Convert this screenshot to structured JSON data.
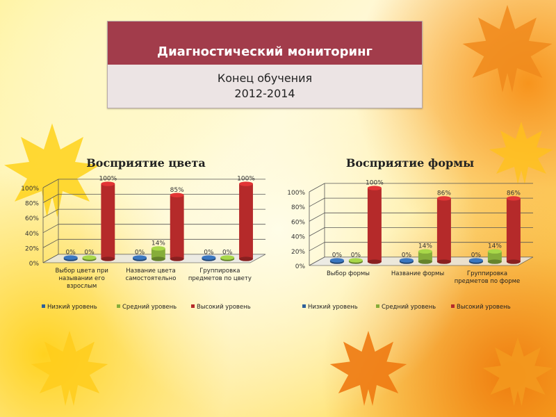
{
  "header": {
    "title": "Диагностический мониторинг",
    "subtitle_line1": "Конец обучения",
    "subtitle_line2": "2012-2014"
  },
  "colors": {
    "header_bg": "#a23c4b",
    "series": [
      "#2e5f9a",
      "#86ad3a",
      "#b52a2a"
    ]
  },
  "chart_data": [
    {
      "type": "bar",
      "title": "Восприятие цвета",
      "categories": [
        [
          "Выбор цвета при",
          "назывании его",
          "взрослым"
        ],
        [
          "Название цвета",
          "самостоятельно"
        ],
        [
          "Группировка",
          "предметов по цвету"
        ]
      ],
      "series": [
        {
          "name": "Низкий уровень",
          "values": [
            0,
            0,
            0
          ],
          "labels": [
            "0%",
            "0%",
            "0%"
          ]
        },
        {
          "name": "Средний уровень",
          "values": [
            0,
            14,
            0
          ],
          "labels": [
            "0%",
            "14%",
            "0%"
          ]
        },
        {
          "name": "Высокий уровень",
          "values": [
            100,
            85,
            100
          ],
          "labels": [
            "100%",
            "85%",
            "100%"
          ]
        }
      ],
      "yticks": [
        "0%",
        "20%",
        "40%",
        "60%",
        "80%",
        "100%"
      ],
      "ylim": [
        0,
        100
      ],
      "grid": true,
      "legend": "bottom"
    },
    {
      "type": "bar",
      "title": "Восприятие формы",
      "categories": [
        [
          "Выбор формы"
        ],
        [
          "Название формы"
        ],
        [
          "Группировка",
          "предметов по форме"
        ]
      ],
      "series": [
        {
          "name": "Низкий уровень",
          "values": [
            0,
            0,
            0
          ],
          "labels": [
            "0%",
            "0%",
            "0%"
          ]
        },
        {
          "name": "Средний уровень",
          "values": [
            0,
            14,
            14
          ],
          "labels": [
            "0%",
            "14%",
            "14%"
          ]
        },
        {
          "name": "Высокий уровень",
          "values": [
            100,
            86,
            86
          ],
          "labels": [
            "100%",
            "86%",
            "86%"
          ]
        }
      ],
      "yticks": [
        "0%",
        "20%",
        "40%",
        "60%",
        "80%",
        "100%"
      ],
      "ylim": [
        0,
        100
      ],
      "grid": true,
      "legend": "bottom"
    }
  ]
}
